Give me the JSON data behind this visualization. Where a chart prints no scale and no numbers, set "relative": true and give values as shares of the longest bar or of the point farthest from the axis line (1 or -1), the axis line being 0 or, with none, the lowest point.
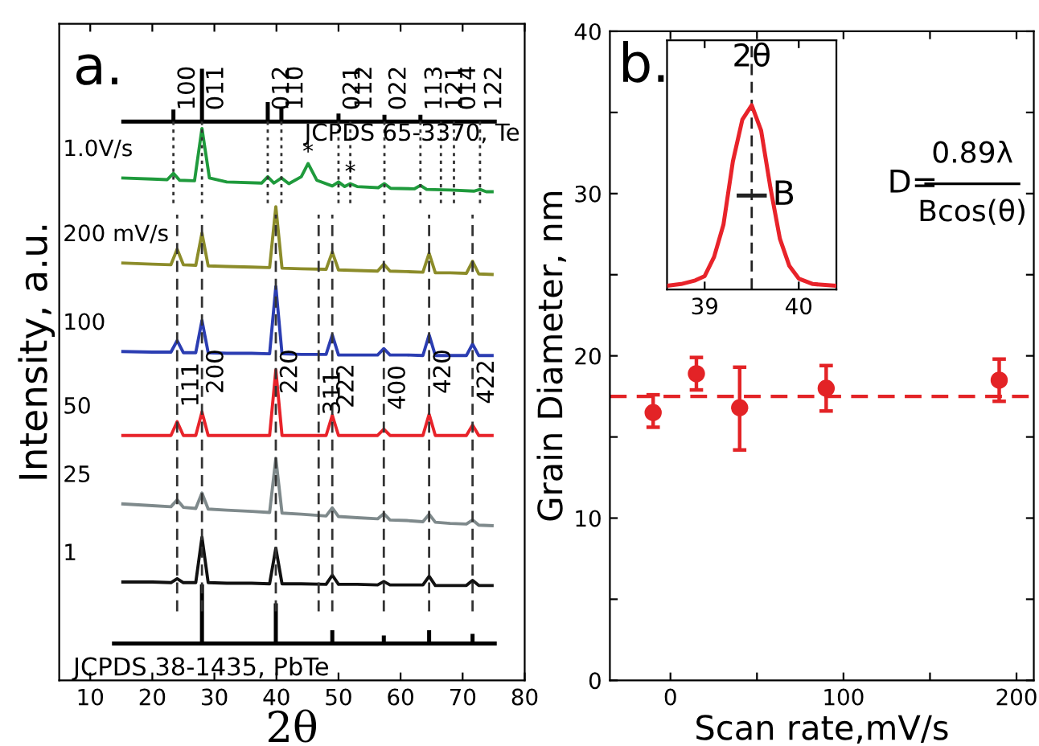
{
  "chart_data": [
    {
      "type": "line",
      "relative": true,
      "xlim": [
        5,
        80
      ],
      "xticks": [
        10,
        20,
        30,
        40,
        50,
        60,
        70,
        80
      ],
      "xlabel": "2θ",
      "ylabel": "Intensity, a.u.",
      "tick_labels": "x",
      "marker": "none",
      "annotations": [
        "a.",
        "JCPDS 65-3370, Te",
        "JCPDS 38-1435, PbTe",
        {
          "text": "100",
          "x": 23.4,
          "y": 0.908
        },
        {
          "text": "011",
          "x": 28.0,
          "y": 0.908
        },
        {
          "text": "012",
          "x": 38.6,
          "y": 0.908
        },
        {
          "text": "110",
          "x": 40.8,
          "y": 0.908
        },
        {
          "text": "021",
          "x": 50.0,
          "y": 0.908
        },
        {
          "text": "112",
          "x": 51.9,
          "y": 0.908
        },
        {
          "text": "022",
          "x": 57.4,
          "y": 0.908
        },
        {
          "text": "113",
          "x": 63.2,
          "y": 0.908
        },
        {
          "text": "121",
          "x": 66.5,
          "y": 0.908
        },
        {
          "text": "014",
          "x": 68.6,
          "y": 0.908
        },
        {
          "text": "122",
          "x": 72.8,
          "y": 0.908
        },
        {
          "text": "111",
          "x": 24,
          "y": 0.392
        },
        {
          "text": "200",
          "x": 28,
          "y": 0.415
        },
        {
          "text": "220",
          "x": 39.9,
          "y": 0.415
        },
        {
          "text": "311",
          "x": 46.8,
          "y": 0.378
        },
        {
          "text": "222",
          "x": 49,
          "y": 0.39
        },
        {
          "text": "400",
          "x": 57.3,
          "y": 0.387
        },
        {
          "text": "420",
          "x": 64.6,
          "y": 0.415
        },
        {
          "text": "422",
          "x": 71.6,
          "y": 0.397
        },
        {
          "text": "*",
          "x": 45.1,
          "y": 0.835
        },
        {
          "text": "*",
          "x": 51.9,
          "y": 0.8
        }
      ],
      "series": [
        {
          "name": "1.0V/s",
          "type": "line",
          "color": "#1f9a3c",
          "x": [
            15,
            20,
            22.4,
            23.4,
            24.4,
            26.8,
            28.0,
            29.2,
            32,
            37.6,
            38.6,
            39.6,
            40.8,
            42,
            44,
            45.1,
            46.5,
            49,
            50.0,
            51,
            51.9,
            53,
            56.4,
            57.4,
            58.4,
            62.2,
            63.2,
            64.2,
            68,
            71.8,
            72.8,
            73.8,
            75
          ],
          "values": [
            0.81,
            0.808,
            0.807,
            0.818,
            0.806,
            0.805,
            0.896,
            0.81,
            0.803,
            0.801,
            0.812,
            0.801,
            0.81,
            0.8,
            0.812,
            0.835,
            0.806,
            0.796,
            0.803,
            0.795,
            0.8,
            0.795,
            0.793,
            0.8,
            0.792,
            0.791,
            0.797,
            0.79,
            0.789,
            0.787,
            0.79,
            0.786,
            0.786
          ]
        },
        {
          "name": "200 mV/s",
          "type": "line",
          "color": "#8c8c2a",
          "x": [
            15,
            20,
            23,
            24,
            25,
            27,
            28,
            29,
            32,
            36,
            38.9,
            39.9,
            40.9,
            44,
            48,
            49,
            50,
            53,
            56.3,
            57.3,
            58.3,
            61,
            63.6,
            64.6,
            65.6,
            68,
            70.6,
            71.6,
            72.6,
            75
          ],
          "values": [
            0.662,
            0.66,
            0.659,
            0.686,
            0.659,
            0.658,
            0.714,
            0.657,
            0.656,
            0.655,
            0.654,
            0.76,
            0.653,
            0.652,
            0.651,
            0.681,
            0.65,
            0.649,
            0.648,
            0.66,
            0.648,
            0.647,
            0.646,
            0.679,
            0.645,
            0.645,
            0.644,
            0.665,
            0.643,
            0.642
          ]
        },
        {
          "name": "100",
          "type": "line",
          "color": "#2b3db2",
          "x": [
            15,
            20,
            23,
            24,
            25,
            27,
            28,
            29,
            32,
            36,
            38.9,
            39.9,
            40.9,
            44,
            48,
            49,
            50,
            53,
            56.3,
            57.3,
            58.3,
            61,
            63.6,
            64.6,
            65.6,
            68,
            70.6,
            71.6,
            72.6,
            75
          ],
          "values": [
            0.508,
            0.507,
            0.507,
            0.527,
            0.506,
            0.506,
            0.562,
            0.506,
            0.505,
            0.505,
            0.504,
            0.621,
            0.504,
            0.503,
            0.503,
            0.537,
            0.502,
            0.502,
            0.502,
            0.513,
            0.502,
            0.502,
            0.501,
            0.537,
            0.501,
            0.501,
            0.501,
            0.521,
            0.501,
            0.501
          ]
        },
        {
          "name": "50",
          "type": "line",
          "color": "#e8232a",
          "x": [
            15,
            20,
            23,
            24,
            25,
            27,
            28,
            29,
            32,
            36,
            38.9,
            39.9,
            40.9,
            44,
            48,
            49,
            50,
            53,
            56.3,
            57.3,
            58.3,
            61,
            63.6,
            64.6,
            65.6,
            68,
            70.6,
            71.6,
            72.6,
            75
          ],
          "values": [
            0.362,
            0.362,
            0.362,
            0.386,
            0.362,
            0.362,
            0.403,
            0.362,
            0.362,
            0.362,
            0.362,
            0.476,
            0.362,
            0.362,
            0.362,
            0.397,
            0.362,
            0.362,
            0.362,
            0.373,
            0.362,
            0.362,
            0.362,
            0.399,
            0.362,
            0.362,
            0.362,
            0.38,
            0.362,
            0.362
          ]
        },
        {
          "name": "25",
          "type": "line",
          "color": "#7f8a8c",
          "x": [
            15,
            20,
            23,
            24,
            25,
            27,
            28,
            29,
            32,
            36,
            38.9,
            39.9,
            40.9,
            44,
            48,
            49,
            50,
            53,
            56.3,
            57.3,
            58.3,
            61,
            63.6,
            64.6,
            65.6,
            68,
            70.6,
            71.6,
            72.6,
            75
          ],
          "values": [
            0.243,
            0.24,
            0.238,
            0.25,
            0.237,
            0.235,
            0.262,
            0.234,
            0.232,
            0.23,
            0.228,
            0.322,
            0.227,
            0.225,
            0.222,
            0.236,
            0.221,
            0.219,
            0.217,
            0.226,
            0.215,
            0.214,
            0.212,
            0.225,
            0.211,
            0.209,
            0.208,
            0.215,
            0.206,
            0.205
          ]
        },
        {
          "name": "1",
          "type": "line",
          "color": "#111111",
          "x": [
            15,
            20,
            23,
            24,
            25,
            27,
            28,
            29,
            32,
            36,
            38.9,
            39.9,
            40.9,
            44,
            48,
            49,
            50,
            53,
            56.3,
            57.3,
            58.3,
            61,
            63.6,
            64.6,
            65.6,
            68,
            70.6,
            71.6,
            72.6,
            75
          ],
          "values": [
            0.107,
            0.107,
            0.106,
            0.113,
            0.106,
            0.106,
            0.185,
            0.106,
            0.105,
            0.105,
            0.104,
            0.166,
            0.104,
            0.104,
            0.103,
            0.119,
            0.103,
            0.103,
            0.102,
            0.108,
            0.102,
            0.102,
            0.102,
            0.117,
            0.101,
            0.101,
            0.101,
            0.11,
            0.101,
            0.101
          ]
        },
        {
          "type": "line",
          "color": "#000000",
          "x": [
            23.4,
            23.4,
            null,
            28.0,
            28.0,
            null,
            38.6,
            38.6,
            null,
            40.8,
            40.8,
            null,
            50.0,
            50.0,
            null,
            57.4,
            57.4,
            null,
            63.2,
            63.2
          ],
          "values": [
            0.908,
            0.929,
            null,
            0.908,
            1.0,
            null,
            0.908,
            0.942,
            null,
            0.908,
            0.933,
            null,
            0.908,
            0.922,
            null,
            0.908,
            0.92,
            null,
            0.908,
            0.92
          ]
        },
        {
          "type": "line",
          "color": "#000000",
          "x": [
            15,
            75.5
          ],
          "values": [
            0.908,
            0.908
          ]
        },
        {
          "type": "line",
          "color": "#000000",
          "x": [
            28.0,
            28.0,
            null,
            39.9,
            39.9,
            null,
            49.0,
            49.0,
            null,
            57.3,
            57.3,
            null,
            64.6,
            64.6,
            null,
            71.6,
            71.6
          ],
          "values": [
            0,
            0.103,
            null,
            0,
            0.07,
            null,
            0,
            0.023,
            null,
            0,
            0.014,
            null,
            0,
            0.023,
            null,
            0,
            0.017
          ]
        },
        {
          "type": "line",
          "color": "#000000",
          "x": [
            13.5,
            75.5
          ],
          "values": [
            0,
            0
          ]
        },
        {
          "type": "line",
          "color": "#333333",
          "line_style": "dotted",
          "x": [
            23.4,
            23.4,
            null,
            28.0,
            28.0,
            null,
            38.6,
            38.6,
            null,
            40.8,
            40.8,
            null,
            50.0,
            50.0,
            null,
            51.9,
            51.9,
            null,
            57.4,
            57.4,
            null,
            63.2,
            63.2,
            null,
            66.5,
            66.5,
            null,
            68.6,
            68.6,
            null,
            72.8,
            72.8
          ],
          "values": [
            0.908,
            0.765,
            null,
            0.908,
            0.765,
            null,
            0.908,
            0.765,
            null,
            0.908,
            0.765,
            null,
            0.908,
            0.765,
            null,
            0.908,
            0.765,
            null,
            0.908,
            0.765,
            null,
            0.908,
            0.765,
            null,
            0.908,
            0.765,
            null,
            0.908,
            0.765,
            null,
            0.908,
            0.765
          ]
        },
        {
          "type": "line",
          "color": "#333333",
          "line_style": "dashed",
          "x": [
            24.0,
            24.0,
            null,
            28.0,
            28.0,
            null,
            39.9,
            39.9,
            null,
            46.8,
            46.8,
            null,
            49.0,
            49.0,
            null,
            57.3,
            57.3,
            null,
            64.6,
            64.6,
            null,
            71.6,
            71.6
          ],
          "values": [
            0.056,
            0.746,
            null,
            0.056,
            0.746,
            null,
            0.056,
            0.746,
            null,
            0.056,
            0.746,
            null,
            0.056,
            0.746,
            null,
            0.056,
            0.746,
            null,
            0.056,
            0.746,
            null,
            0.056,
            0.746
          ]
        }
      ]
    },
    {
      "type": "scatter",
      "x": [
        -10,
        15,
        40,
        90,
        190
      ],
      "values": [
        16.5,
        18.9,
        16.8,
        18.0,
        18.5
      ],
      "errors": [
        [
          15.6,
          17.6
        ],
        [
          17.9,
          19.9
        ],
        [
          14.2,
          19.3
        ],
        [
          16.6,
          19.4
        ],
        [
          17.2,
          19.8
        ]
      ],
      "color": "#e32326",
      "marker": "circle",
      "xlim": [
        -35,
        210
      ],
      "ylim": [
        0,
        40
      ],
      "xticks": [
        0,
        {
          "value": 50,
          "label": null
        },
        100,
        {
          "value": 150,
          "label": null
        },
        200
      ],
      "yticks": [
        0,
        {
          "value": 5,
          "label": null
        },
        10,
        {
          "value": 15,
          "label": null
        },
        20,
        {
          "value": 25,
          "label": null
        },
        30,
        {
          "value": 35,
          "label": null
        },
        40
      ],
      "xlabel": "Scan rate,mV/s",
      "ylabel": "Grain Diameter, nm",
      "ref_lines": [
        {
          "axis": "y",
          "value": 17.5,
          "color": "#e32326",
          "line_style": "dashed"
        }
      ],
      "annotations": [
        "b.",
        "D=",
        "0.89λ",
        "Bcos(θ)"
      ]
    },
    {
      "type": "line",
      "relative": true,
      "xlim": [
        38.6,
        40.4
      ],
      "xticks": [
        39,
        40
      ],
      "tick_labels": "x",
      "marker": "none",
      "series": [
        {
          "type": "line",
          "color": "#e8232a",
          "x": [
            38.6,
            38.75,
            38.9,
            39.0,
            39.1,
            39.2,
            39.3,
            39.4,
            39.5,
            39.6,
            39.7,
            39.8,
            39.9,
            40.0,
            40.15,
            40.4
          ],
          "values": [
            0,
            0.01,
            0.03,
            0.054,
            0.16,
            0.34,
            0.69,
            0.92,
            1.0,
            0.86,
            0.54,
            0.26,
            0.11,
            0.04,
            0.01,
            0
          ]
        },
        {
          "type": "line",
          "color": "#222222",
          "x": [
            39.34,
            39.66
          ],
          "values": [
            0.5,
            0.5
          ]
        }
      ],
      "ref_lines": [
        {
          "axis": "x",
          "value": 39.5,
          "color": "#222222",
          "line_style": "dashed"
        }
      ],
      "annotations": [
        "2θ",
        {
          "text": "B",
          "x": 39.72,
          "y": 0.5
        }
      ]
    }
  ]
}
